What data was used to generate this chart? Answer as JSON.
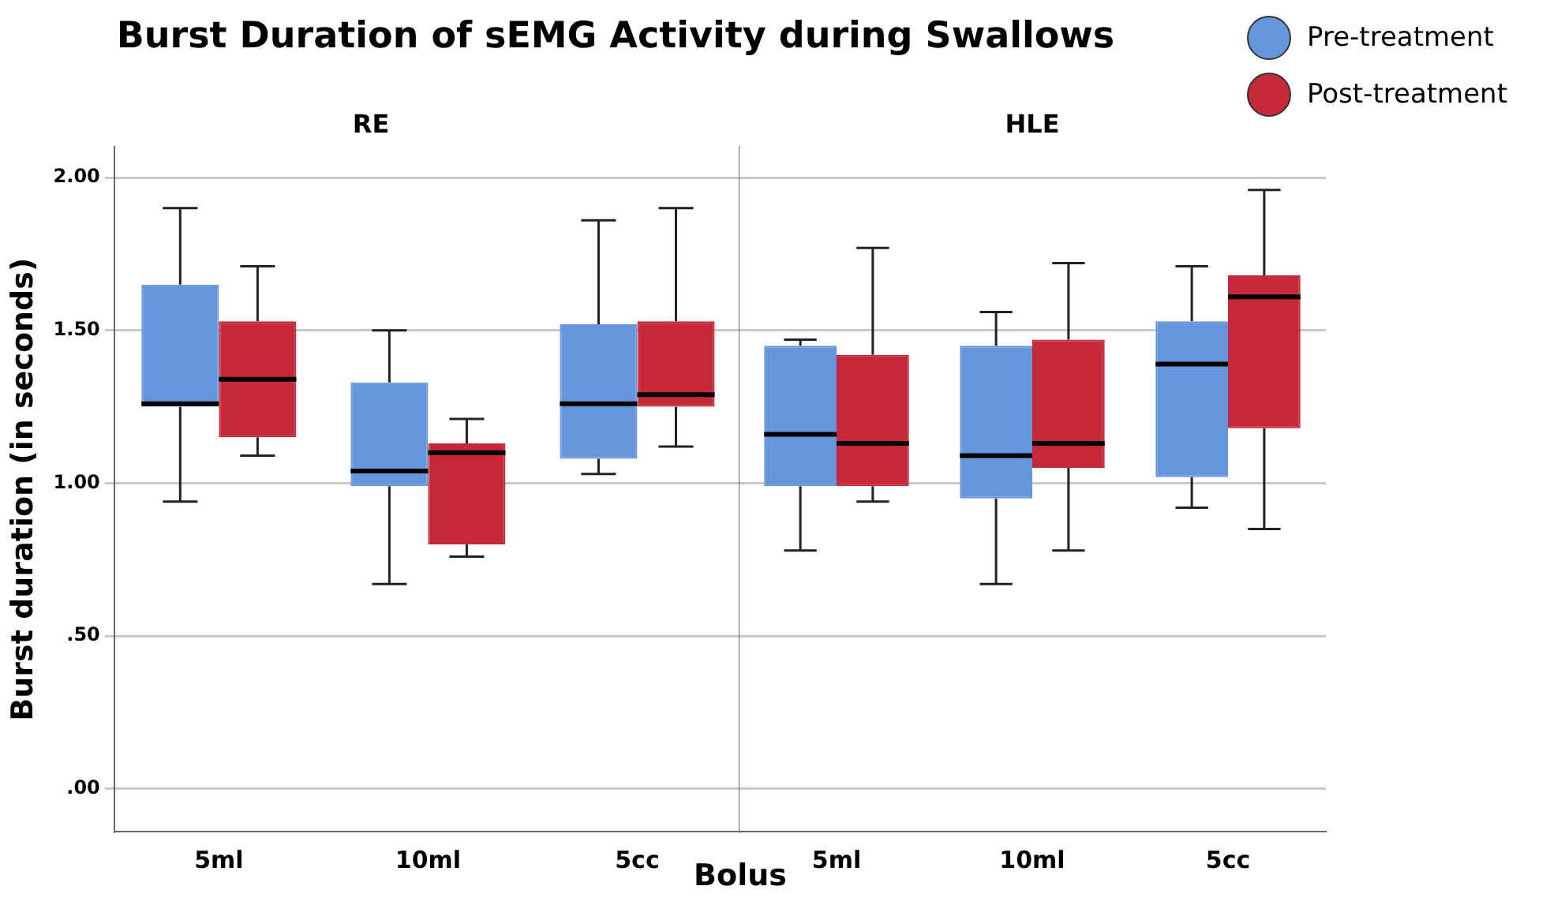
{
  "chart_data": [
    {
      "type": "box",
      "title": "Burst Duration of sEMG Activity during Swallows",
      "subtitle": "RE",
      "xlabel": "Bolus",
      "ylabel": "Burst duration (in seconds)",
      "categories": [
        "5ml",
        "10ml",
        "5cc"
      ],
      "series": [
        {
          "color": "#6596dc",
          "boxes": [
            {
              "low": 0.94,
              "q1": 1.25,
              "median": 1.26,
              "q3": 1.65,
              "high": 1.9
            },
            {
              "low": 0.67,
              "q1": 0.99,
              "median": 1.04,
              "q3": 1.33,
              "high": 1.5
            },
            {
              "low": 1.03,
              "q1": 1.08,
              "median": 1.26,
              "q3": 1.52,
              "high": 1.86
            }
          ]
        },
        {
          "color": "#c42839",
          "boxes": [
            {
              "low": 1.09,
              "q1": 1.15,
              "median": 1.34,
              "q3": 1.53,
              "high": 1.71
            },
            {
              "low": 0.76,
              "q1": 0.8,
              "median": 1.1,
              "q3": 1.13,
              "high": 1.21
            },
            {
              "low": 1.12,
              "q1": 1.25,
              "median": 1.29,
              "q3": 1.53,
              "high": 1.9
            }
          ]
        }
      ],
      "ylim": [
        -0.14,
        2.1
      ],
      "yticks": [
        {
          "value": 0,
          "label": ".00"
        },
        {
          "value": 0.5,
          "label": ".50"
        },
        {
          "value": 1,
          "label": "1.00"
        },
        {
          "value": 1.5,
          "label": "1.50"
        },
        {
          "value": 2,
          "label": "2.00"
        }
      ],
      "grid": "y"
    },
    {
      "type": "box",
      "subtitle": "HLE",
      "categories": [
        "5ml",
        "10ml",
        "5cc"
      ],
      "series": [
        {
          "name": "Pre-treatment",
          "color": "#6596dc",
          "boxes": [
            {
              "low": 0.78,
              "q1": 0.99,
              "median": 1.16,
              "q3": 1.45,
              "high": 1.47
            },
            {
              "low": 0.67,
              "q1": 0.95,
              "median": 1.09,
              "q3": 1.45,
              "high": 1.56
            },
            {
              "low": 0.92,
              "q1": 1.02,
              "median": 1.39,
              "q3": 1.53,
              "high": 1.71
            }
          ]
        },
        {
          "name": "Post-treatment",
          "color": "#c42839",
          "boxes": [
            {
              "low": 0.94,
              "q1": 0.99,
              "median": 1.13,
              "q3": 1.42,
              "high": 1.77
            },
            {
              "low": 0.78,
              "q1": 1.05,
              "median": 1.13,
              "q3": 1.47,
              "high": 1.72
            },
            {
              "low": 0.85,
              "q1": 1.18,
              "median": 1.61,
              "q3": 1.68,
              "high": 1.96
            }
          ]
        }
      ],
      "ylim": [
        -0.14,
        2.1
      ],
      "yticks": [
        {
          "value": 0,
          "label": null
        },
        {
          "value": 0.5,
          "label": null
        },
        {
          "value": 1,
          "label": null
        },
        {
          "value": 1.5,
          "label": null
        },
        {
          "value": 2,
          "label": null
        }
      ],
      "grid": "y",
      "tick_labels": "x",
      "legend": "top right"
    }
  ]
}
